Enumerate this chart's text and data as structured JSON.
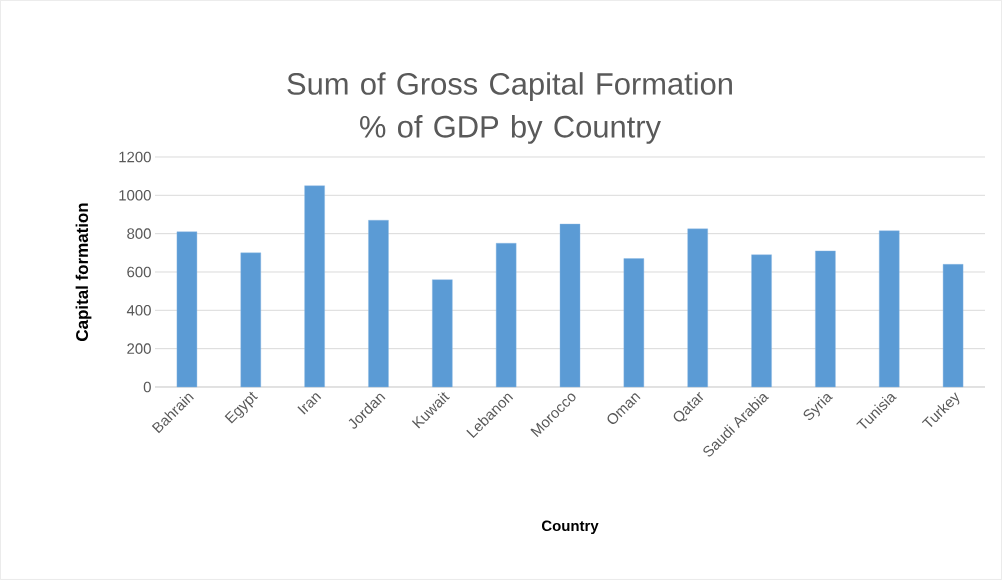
{
  "chart_data": {
    "type": "bar",
    "title": "Sum of Gross Capital Formation % of GDP  by Country",
    "xlabel": "Country",
    "ylabel": "Capital formation",
    "categories": [
      "Bahrain",
      "Egypt",
      "Iran",
      "Jordan",
      "Kuwait",
      "Lebanon",
      "Morocco",
      "Oman",
      "Qatar",
      "Saudi Arabia",
      "Syria",
      "Tunisia",
      "Turkey"
    ],
    "values": [
      810,
      700,
      1050,
      870,
      560,
      750,
      850,
      670,
      825,
      690,
      710,
      815,
      640
    ],
    "color": "#5b9bd5",
    "ylim": [
      0,
      1200
    ],
    "yticks": [
      0,
      200,
      400,
      600,
      800,
      1000,
      1200
    ],
    "grid": "y"
  }
}
